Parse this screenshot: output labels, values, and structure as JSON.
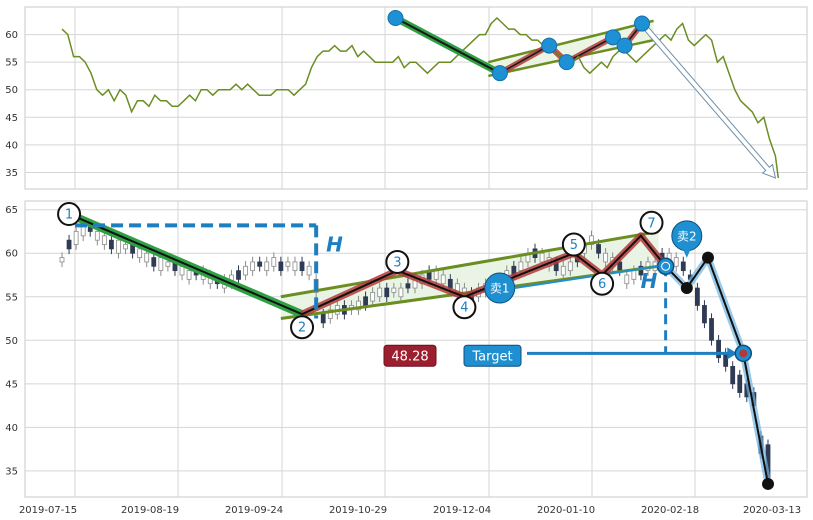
{
  "chart_data": [
    {
      "type": "line",
      "panel": "top",
      "ylim": [
        32,
        65
      ],
      "yticks": [
        35,
        40,
        45,
        50,
        55,
        60
      ],
      "grid": true,
      "colors": {
        "price": "#6b8e23",
        "marker": "#1e90d4",
        "trend": "#1a1a1a"
      },
      "series": [
        {
          "values": [
            [
              0,
              61
            ],
            [
              2,
              60
            ],
            [
              4,
              56
            ],
            [
              6,
              56
            ],
            [
              8,
              55
            ],
            [
              10,
              53
            ],
            [
              12,
              50
            ],
            [
              14,
              49
            ],
            [
              16,
              50
            ],
            [
              18,
              48
            ],
            [
              20,
              50
            ],
            [
              22,
              49
            ],
            [
              24,
              46
            ],
            [
              26,
              48
            ],
            [
              28,
              48
            ],
            [
              30,
              47
            ],
            [
              32,
              49
            ],
            [
              34,
              48
            ],
            [
              36,
              48
            ],
            [
              38,
              47
            ],
            [
              40,
              47
            ],
            [
              42,
              48
            ],
            [
              44,
              49
            ],
            [
              46,
              48
            ],
            [
              48,
              50
            ],
            [
              50,
              50
            ],
            [
              52,
              49
            ],
            [
              54,
              50
            ],
            [
              56,
              50
            ],
            [
              58,
              50
            ],
            [
              60,
              51
            ],
            [
              62,
              50
            ],
            [
              64,
              51
            ],
            [
              66,
              50
            ],
            [
              68,
              49
            ],
            [
              70,
              49
            ],
            [
              72,
              49
            ],
            [
              74,
              50
            ],
            [
              76,
              50
            ],
            [
              78,
              50
            ],
            [
              80,
              49
            ],
            [
              82,
              50
            ],
            [
              84,
              51
            ],
            [
              86,
              54
            ],
            [
              88,
              56
            ],
            [
              90,
              57
            ],
            [
              92,
              57
            ],
            [
              94,
              58
            ],
            [
              96,
              57
            ],
            [
              98,
              57
            ],
            [
              100,
              58
            ],
            [
              102,
              56
            ],
            [
              104,
              57
            ],
            [
              106,
              56
            ],
            [
              108,
              55
            ],
            [
              110,
              55
            ],
            [
              112,
              55
            ],
            [
              114,
              55
            ],
            [
              116,
              56
            ],
            [
              118,
              54
            ],
            [
              120,
              55
            ],
            [
              122,
              55
            ],
            [
              124,
              54
            ],
            [
              126,
              53
            ],
            [
              128,
              54
            ],
            [
              130,
              55
            ],
            [
              132,
              55
            ],
            [
              134,
              55
            ],
            [
              136,
              56
            ],
            [
              138,
              57
            ],
            [
              140,
              58
            ],
            [
              142,
              59
            ],
            [
              144,
              60
            ],
            [
              146,
              60
            ],
            [
              148,
              62
            ],
            [
              150,
              63
            ],
            [
              152,
              62
            ],
            [
              154,
              61
            ],
            [
              156,
              61
            ],
            [
              158,
              60
            ],
            [
              160,
              60
            ],
            [
              162,
              59
            ],
            [
              164,
              59
            ],
            [
              166,
              58
            ],
            [
              168,
              58
            ],
            [
              170,
              57
            ],
            [
              172,
              56
            ],
            [
              174,
              56
            ],
            [
              176,
              55
            ],
            [
              178,
              56
            ],
            [
              180,
              54
            ],
            [
              182,
              53
            ],
            [
              184,
              54
            ],
            [
              186,
              55
            ],
            [
              188,
              54
            ],
            [
              190,
              56
            ],
            [
              192,
              57
            ],
            [
              194,
              57
            ],
            [
              196,
              56
            ],
            [
              198,
              55
            ],
            [
              200,
              56
            ],
            [
              202,
              57
            ],
            [
              204,
              58
            ],
            [
              206,
              59
            ],
            [
              208,
              60
            ],
            [
              210,
              59
            ],
            [
              212,
              61
            ],
            [
              214,
              62
            ],
            [
              216,
              59
            ],
            [
              218,
              58
            ],
            [
              220,
              59
            ],
            [
              222,
              60
            ],
            [
              224,
              59
            ],
            [
              226,
              55
            ],
            [
              228,
              56
            ],
            [
              230,
              53
            ],
            [
              232,
              50
            ],
            [
              234,
              48
            ],
            [
              236,
              47
            ],
            [
              238,
              46
            ],
            [
              240,
              44
            ],
            [
              242,
              45
            ],
            [
              244,
              41
            ],
            [
              246,
              38
            ],
            [
              247,
              34
            ]
          ]
        }
      ],
      "x_range": [
        0,
        250
      ],
      "markers": [
        [
          115,
          63
        ],
        [
          151,
          53
        ],
        [
          168,
          58
        ],
        [
          174,
          55
        ],
        [
          190,
          59.5
        ],
        [
          194,
          58
        ],
        [
          200,
          62
        ]
      ],
      "trend_lines": [
        [
          [
            115,
            63
          ],
          [
            151,
            53
          ]
        ]
      ],
      "channel": {
        "upper": [
          [
            147,
            55
          ],
          [
            204,
            62.5
          ]
        ],
        "lower": [
          [
            147,
            52.5
          ],
          [
            204,
            59
          ]
        ]
      },
      "arrow": {
        "from": [
          200,
          62
        ],
        "to": [
          246,
          34
        ]
      }
    },
    {
      "type": "candlestick",
      "panel": "bottom",
      "ylim": [
        32,
        66
      ],
      "yticks": [
        35,
        40,
        45,
        50,
        55,
        60,
        65
      ],
      "grid": true,
      "x_range": [
        0,
        250
      ],
      "xticks": [
        "2019-07-15",
        "2019-08-19",
        "2019-09-24",
        "2019-10-29",
        "2019-12-04",
        "2020-01-10",
        "2020-02-18",
        "2020-03-13"
      ],
      "xtick_positions": [
        0,
        34,
        69,
        103,
        137,
        171,
        205,
        239
      ],
      "colors": {
        "up": "#8c8c8c",
        "down": "#2f3a55",
        "green": "#2ea043",
        "green_dark": "#1b7a2b",
        "red": "#b23a3a",
        "channel": "#6b8e23",
        "channel_fill": "#e8f3e3",
        "blue": "#1e7fc0",
        "blue_fill": "#1e8fd0",
        "black": "#111111",
        "label_red": "#9b1f2e"
      },
      "candles": [
        [
          0,
          59,
          59.5
        ],
        [
          2,
          60.5,
          61.5
        ],
        [
          4,
          61,
          62.5
        ],
        [
          6,
          62,
          63.5
        ],
        [
          8,
          62.5,
          63
        ],
        [
          10,
          61.5,
          62.5
        ],
        [
          12,
          61,
          62
        ],
        [
          14,
          60.5,
          61.5
        ],
        [
          16,
          60,
          61.5
        ],
        [
          18,
          60.5,
          61
        ],
        [
          20,
          60,
          61
        ],
        [
          22,
          59.5,
          60.5
        ],
        [
          24,
          59,
          60
        ],
        [
          26,
          58.5,
          59.5
        ],
        [
          28,
          58,
          59.5
        ],
        [
          30,
          58.5,
          59
        ],
        [
          32,
          58,
          59
        ],
        [
          34,
          57.5,
          58.5
        ],
        [
          36,
          57,
          58
        ],
        [
          38,
          57.5,
          58
        ],
        [
          40,
          57,
          58
        ],
        [
          42,
          56.5,
          57.5
        ],
        [
          44,
          56.5,
          57
        ],
        [
          46,
          56,
          57
        ],
        [
          48,
          56.5,
          57.5
        ],
        [
          50,
          57,
          58
        ],
        [
          52,
          57.5,
          58.5
        ],
        [
          54,
          58,
          59
        ],
        [
          56,
          58.5,
          59
        ],
        [
          58,
          58,
          59
        ],
        [
          60,
          58.5,
          59.5
        ],
        [
          62,
          58,
          59
        ],
        [
          64,
          58.5,
          59
        ],
        [
          66,
          58,
          59
        ],
        [
          68,
          58,
          59
        ],
        [
          70,
          57.5,
          58.5
        ],
        [
          72,
          55.5,
          57
        ],
        [
          74,
          52,
          53
        ],
        [
          76,
          52.5,
          53.5
        ],
        [
          78,
          53,
          54
        ],
        [
          80,
          53,
          54
        ],
        [
          82,
          53.5,
          54
        ],
        [
          84,
          53.5,
          54.5
        ],
        [
          86,
          54,
          55
        ],
        [
          88,
          54.5,
          55.5
        ],
        [
          90,
          55,
          56
        ],
        [
          92,
          55,
          56
        ],
        [
          94,
          55.5,
          56
        ],
        [
          96,
          55,
          56
        ],
        [
          98,
          56,
          56.5
        ],
        [
          100,
          56,
          57
        ],
        [
          102,
          56.5,
          57.5
        ],
        [
          104,
          57,
          58
        ],
        [
          106,
          57,
          58
        ],
        [
          108,
          56.5,
          57.5
        ],
        [
          110,
          56,
          57
        ],
        [
          112,
          55.5,
          56.5
        ],
        [
          114,
          55,
          56
        ],
        [
          116,
          54.5,
          55.5
        ],
        [
          118,
          55,
          56
        ],
        [
          120,
          55.5,
          56.5
        ],
        [
          122,
          56,
          56.5
        ],
        [
          124,
          56.5,
          57
        ],
        [
          126,
          57,
          58
        ],
        [
          128,
          57.5,
          58.5
        ],
        [
          130,
          58,
          59
        ],
        [
          132,
          59,
          60
        ],
        [
          134,
          59.5,
          60.5
        ],
        [
          136,
          59,
          60
        ],
        [
          138,
          58.5,
          59.5
        ],
        [
          140,
          58,
          59
        ],
        [
          142,
          57.5,
          58.5
        ],
        [
          144,
          58,
          59
        ],
        [
          146,
          59,
          60
        ],
        [
          148,
          60,
          61
        ],
        [
          150,
          61,
          62
        ],
        [
          152,
          60,
          61
        ],
        [
          154,
          59,
          60
        ],
        [
          156,
          58.5,
          59.5
        ],
        [
          158,
          58,
          59
        ],
        [
          160,
          56.5,
          57.5
        ],
        [
          162,
          57,
          58
        ],
        [
          164,
          57.5,
          58.5
        ],
        [
          166,
          58,
          59
        ],
        [
          168,
          58,
          59
        ],
        [
          170,
          59,
          60
        ],
        [
          172,
          59,
          60
        ],
        [
          174,
          58.5,
          59.5
        ],
        [
          176,
          58,
          59
        ],
        [
          178,
          57,
          57.5
        ],
        [
          180,
          54,
          56
        ],
        [
          182,
          52,
          54
        ],
        [
          184,
          50,
          52.5
        ],
        [
          186,
          48,
          50
        ],
        [
          188,
          47,
          48.5
        ],
        [
          190,
          45,
          47
        ],
        [
          192,
          44,
          46
        ],
        [
          194,
          43.5,
          45
        ],
        [
          196,
          42.5,
          44
        ],
        [
          198,
          37,
          39
        ],
        [
          200,
          34,
          38
        ]
      ],
      "points": [
        {
          "label": "1",
          "x": 2,
          "y": 64.5
        },
        {
          "label": "2",
          "x": 68,
          "y": 51.5
        },
        {
          "label": "3",
          "x": 95,
          "y": 59
        },
        {
          "label": "4",
          "x": 114,
          "y": 53.8
        },
        {
          "label": "5",
          "x": 145,
          "y": 61
        },
        {
          "label": "6",
          "x": 153,
          "y": 56.5
        },
        {
          "label": "7",
          "x": 167,
          "y": 63.5
        }
      ],
      "channel": {
        "upper": [
          [
            62,
            55
          ],
          [
            169,
            62.5
          ]
        ],
        "lower": [
          [
            62,
            52.5
          ],
          [
            169,
            58.5
          ]
        ]
      },
      "pattern_path": [
        [
          2,
          64.5
        ],
        [
          68,
          53
        ],
        [
          95,
          58
        ],
        [
          114,
          55
        ],
        [
          145,
          60
        ],
        [
          153,
          57.5
        ],
        [
          164,
          62
        ],
        [
          171,
          58.5
        ]
      ],
      "breakout_point": {
        "x": 171,
        "y": 58.5
      },
      "height_lines": [
        {
          "x": 72,
          "y_top": 63.2,
          "y_bottom": 52.5,
          "top_line_from": 2
        },
        {
          "x": 171,
          "y_top": 58.5,
          "y_bottom": 48.5
        }
      ],
      "labels": {
        "height": "H",
        "price": "48.28",
        "target": "Target",
        "sell1": "卖1",
        "sell2": "卖2"
      },
      "sell_marks": [
        {
          "label": "sell1",
          "x": 124,
          "y": 56
        },
        {
          "label": "sell2",
          "x": 177,
          "y": 62
        }
      ],
      "zigzag": [
        [
          171,
          58.5
        ],
        [
          177,
          56
        ],
        [
          183,
          59.5
        ],
        [
          193,
          48.5
        ],
        [
          200,
          33.5
        ]
      ],
      "target_point": {
        "x": 193,
        "y": 48.5
      }
    }
  ]
}
